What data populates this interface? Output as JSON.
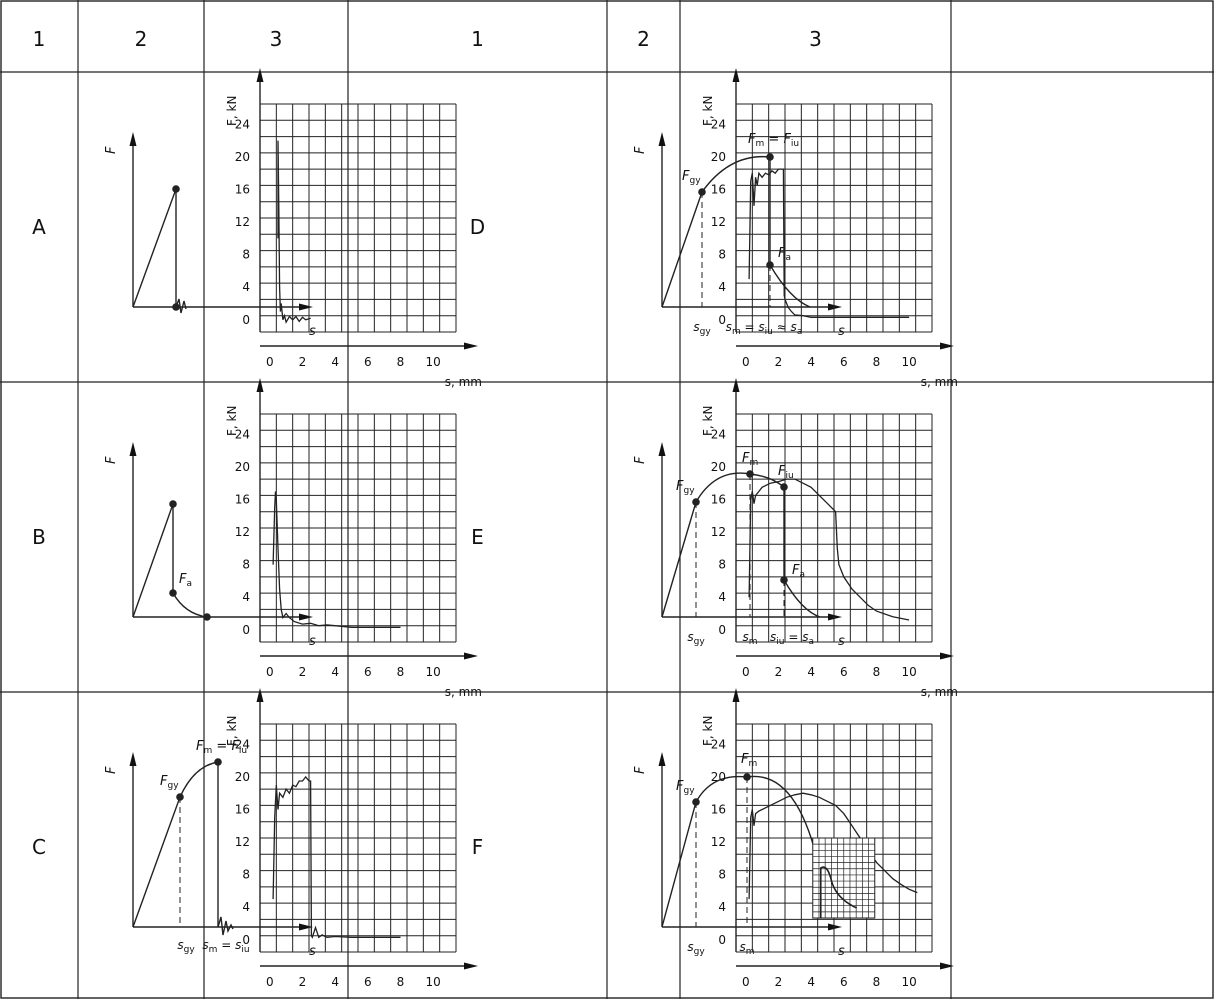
{
  "header": [
    "1",
    "2",
    "3",
    "1",
    "2",
    "3"
  ],
  "rows": [
    {
      "left": {
        "label": "A",
        "sketch": {
          "points": [
            {
              "label": "",
              "sub": ""
            }
          ]
        },
        "plot": {
          "x": [
            0.5,
            0.5,
            0.55,
            0.6,
            0.65,
            0.7,
            0.8,
            0.9,
            1.0,
            1.2,
            1.4,
            1.6,
            1.8,
            2.0,
            2.2,
            2.5
          ],
          "y": [
            10,
            22,
            14,
            4,
            1,
            2,
            0,
            0.5,
            -0.3,
            0.4,
            0,
            0.4,
            -0.2,
            0.3,
            0,
            0.2
          ]
        }
      },
      "right": {
        "label": "D",
        "sketch": {
          "points": [
            {
              "label": "F",
              "sub": "gy"
            },
            {
              "label": "F",
              "sub": "m",
              "eq": "F",
              "eqsub": "iu"
            },
            {
              "label": "F",
              "sub": "a"
            }
          ],
          "ticks": [
            {
              "label": "s",
              "sub": "gy"
            },
            {
              "label": "s",
              "sub": "m",
              "rest": [
                {
                  "t": " = s"
                },
                {
                  "sub": "iu"
                },
                {
                  "t": " ≈ s"
                },
                {
                  "sub": "a"
                }
              ]
            }
          ]
        },
        "plot": {
          "x": [
            0.2,
            0.3,
            0.4,
            0.5,
            0.6,
            0.7,
            0.8,
            1.0,
            1.2,
            1.4,
            1.6,
            1.8,
            2.0,
            2.2,
            2.3,
            2.35,
            2.4,
            2.6,
            2.8,
            3.0,
            3.5,
            4,
            5,
            6,
            7,
            8,
            9,
            10
          ],
          "y": [
            5,
            17,
            18,
            14,
            17.5,
            16.5,
            18,
            17.5,
            18,
            17.8,
            18.3,
            18,
            18.5,
            18.5,
            18.5,
            3,
            2.5,
            1.5,
            1,
            0.6,
            0.5,
            0.3,
            0.3,
            0.3,
            0.3,
            0.3,
            0.3,
            0.3
          ]
        }
      }
    },
    {
      "left": {
        "label": "B",
        "sketch": {
          "points": [
            {
              "label": "F",
              "sub": "a"
            }
          ]
        },
        "plot": {
          "x": [
            0.2,
            0.3,
            0.35,
            0.4,
            0.5,
            0.6,
            0.7,
            0.8,
            1.0,
            1.2,
            1.5,
            2,
            2.5,
            3,
            3.5,
            4,
            5,
            6,
            7,
            8
          ],
          "y": [
            8,
            15,
            17,
            16,
            10,
            5,
            2.5,
            1.5,
            2,
            1.5,
            1,
            0.7,
            0.8,
            0.5,
            0.6,
            0.5,
            0.3,
            0.3,
            0.3,
            0.3
          ]
        }
      },
      "right": {
        "label": "E",
        "sketch": {
          "points": [
            {
              "label": "F",
              "sub": "gy"
            },
            {
              "label": "F",
              "sub": "m"
            },
            {
              "label": "F",
              "sub": "iu"
            },
            {
              "label": "F",
              "sub": "a"
            }
          ],
          "ticks": [
            {
              "label": "s",
              "sub": "gy"
            },
            {
              "label": "s",
              "sub": "m"
            },
            {
              "label": "s",
              "sub": "iu",
              "rest": [
                {
                  "t": " = s"
                },
                {
                  "sub": "a"
                }
              ]
            }
          ]
        },
        "plot": {
          "x": [
            0.2,
            0.3,
            0.4,
            0.5,
            0.6,
            0.8,
            1.0,
            1.5,
            2.0,
            2.5,
            3.0,
            3.5,
            4.0,
            4.5,
            5.0,
            5.5,
            5.6,
            5.7,
            6.0,
            6.5,
            7.0,
            7.5,
            8.0,
            9.0,
            10.0
          ],
          "y": [
            4,
            16,
            17,
            15.5,
            16.5,
            17,
            17.5,
            18,
            18.2,
            18.5,
            18.5,
            18,
            17.5,
            16.5,
            15.5,
            14.5,
            10,
            8,
            6.5,
            5,
            4,
            3,
            2.3,
            1.6,
            1.2
          ]
        }
      }
    },
    {
      "left": {
        "label": "C",
        "sketch": {
          "points": [
            {
              "label": "F",
              "sub": "gy"
            },
            {
              "label": "F",
              "sub": "m",
              "eq": "F",
              "eqsub": "iu"
            }
          ],
          "ticks": [
            {
              "label": "s",
              "sub": "gy"
            },
            {
              "label": "s",
              "sub": "m",
              "rest": [
                {
                  "t": " = s"
                },
                {
                  "sub": "iu"
                }
              ]
            }
          ]
        },
        "plot": {
          "x": [
            0.2,
            0.3,
            0.4,
            0.5,
            0.6,
            0.8,
            1.0,
            1.2,
            1.4,
            1.6,
            1.8,
            2.0,
            2.2,
            2.4,
            2.5,
            2.55,
            2.6,
            2.8,
            3.0,
            3.2,
            3.5,
            4,
            5,
            6,
            7,
            8
          ],
          "y": [
            5,
            15,
            19,
            16,
            18,
            17.5,
            18.5,
            18,
            19,
            18.8,
            19.5,
            19.5,
            20,
            19.5,
            19.5,
            0.5,
            0.3,
            1.5,
            0.3,
            0.6,
            0.3,
            0.4,
            0.3,
            0.3,
            0.3,
            0.3
          ]
        }
      },
      "right": {
        "label": "F",
        "sketch": {
          "points": [
            {
              "label": "F",
              "sub": "gy"
            },
            {
              "label": "F",
              "sub": "m"
            }
          ],
          "ticks": [
            {
              "label": "s",
              "sub": "gy"
            },
            {
              "label": "s",
              "sub": "m"
            }
          ]
        },
        "plot": {
          "x": [
            0.2,
            0.3,
            0.4,
            0.5,
            0.6,
            0.8,
            1.0,
            1.5,
            2.0,
            2.5,
            3.0,
            3.5,
            4.0,
            4.5,
            5.0,
            5.5,
            6.0,
            6.5,
            7.0,
            7.5,
            8.0,
            8.5,
            9.0,
            9.5,
            10.0,
            10.5
          ],
          "y": [
            5,
            15,
            16,
            14,
            15.5,
            15.8,
            16,
            16.5,
            17,
            17.5,
            17.8,
            18,
            17.8,
            17.5,
            17,
            16.5,
            15.5,
            14,
            12.5,
            11,
            9.5,
            8.5,
            7.5,
            6.8,
            6.2,
            5.8
          ]
        }
      }
    }
  ],
  "sketch_axes": {
    "y": "F",
    "x": "s"
  },
  "plot_axes": {
    "ylabel": "F, kN",
    "xlabel": "s, mm",
    "yticks": [
      "0",
      "4",
      "8",
      "12",
      "16",
      "20",
      "24"
    ],
    "xticks": [
      "0",
      "2",
      "4",
      "6",
      "8",
      "10"
    ],
    "xlim": [
      -0.6,
      11.4
    ],
    "ylim": [
      -1.5,
      26.5
    ]
  }
}
